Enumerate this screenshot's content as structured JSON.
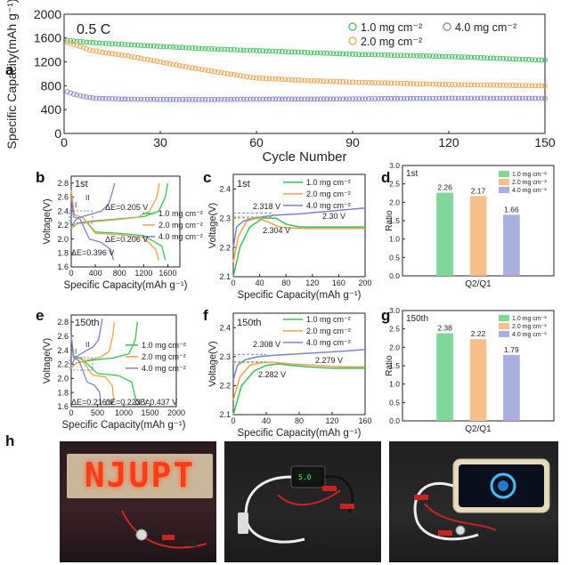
{
  "panels": {
    "a": "a",
    "b": "b",
    "c": "c",
    "d": "d",
    "e": "e",
    "f": "f",
    "g": "g",
    "h": "h"
  },
  "chart_data": [
    {
      "id": "a",
      "type": "scatter",
      "title": "0.5 C",
      "xlabel": "Cycle Number",
      "ylabel": "Specific Capacity(mAh g⁻¹)",
      "xlim": [
        0,
        150
      ],
      "ylim": [
        0,
        2000
      ],
      "xticks": [
        0,
        30,
        60,
        90,
        120,
        150
      ],
      "yticks": [
        0,
        400,
        800,
        1200,
        1600,
        2000
      ],
      "legend": [
        "1.0 mg cm⁻²",
        "2.0 mg cm⁻²",
        "4.0 mg cm⁻²"
      ],
      "series": [
        {
          "name": "1.0 mg cm⁻²",
          "color": "#3cbf5a",
          "x": [
            1,
            5,
            10,
            20,
            30,
            45,
            60,
            75,
            90,
            105,
            120,
            135,
            150
          ],
          "y": [
            1560,
            1540,
            1520,
            1490,
            1460,
            1420,
            1390,
            1360,
            1330,
            1310,
            1290,
            1260,
            1230
          ]
        },
        {
          "name": "2.0 mg cm⁻²",
          "color": "#f0a24a",
          "x": [
            1,
            5,
            8,
            12,
            20,
            30,
            40,
            50,
            60,
            75,
            90,
            105,
            120,
            135,
            150
          ],
          "y": [
            1530,
            1460,
            1400,
            1360,
            1300,
            1200,
            1100,
            1010,
            930,
            890,
            860,
            840,
            820,
            810,
            800
          ]
        },
        {
          "name": "4.0 mg cm⁻²",
          "color": "#8080c8",
          "x": [
            1,
            3,
            6,
            10,
            20,
            30,
            45,
            60,
            90,
            120,
            150
          ],
          "y": [
            700,
            660,
            620,
            590,
            575,
            570,
            570,
            575,
            580,
            590,
            590
          ]
        }
      ]
    },
    {
      "id": "b",
      "type": "line",
      "title": "1st",
      "xlabel": "Specific Capacity(mAh g⁻¹)",
      "ylabel": "Voltage(V)",
      "xlim": [
        0,
        1800
      ],
      "ylim": [
        1.6,
        2.9
      ],
      "xticks": [
        0,
        400,
        800,
        1200,
        1600
      ],
      "yticks": [
        1.6,
        1.8,
        2.0,
        2.2,
        2.4,
        2.6,
        2.8
      ],
      "legend": [
        "1.0 mg cm⁻²",
        "2.0 mg cm⁻²",
        "4.0 mg cm⁻²"
      ],
      "annotations": [
        "ΔE=0.205 V",
        "ΔE=0.206 V",
        "ΔE=0.396 V",
        "I",
        "II"
      ],
      "series": [
        {
          "name": "1.0 mg cm⁻²",
          "color": "#3cbf5a",
          "discharge": {
            "x": [
              0,
              50,
              200,
              400,
              800,
              1200,
              1500,
              1560
            ],
            "y": [
              2.7,
              2.35,
              2.3,
              2.1,
              2.08,
              2.05,
              1.9,
              1.7
            ]
          },
          "charge": {
            "x": [
              0,
              100,
              400,
              800,
              1200,
              1450,
              1560,
              1600
            ],
            "y": [
              2.15,
              2.23,
              2.26,
              2.29,
              2.32,
              2.4,
              2.6,
              2.8
            ]
          }
        },
        {
          "name": "2.0 mg cm⁻²",
          "color": "#f0a24a",
          "discharge": {
            "x": [
              0,
              50,
              200,
              400,
              800,
              1200,
              1400,
              1450
            ],
            "y": [
              2.7,
              2.35,
              2.3,
              2.08,
              2.06,
              2.02,
              1.85,
              1.7
            ]
          },
          "charge": {
            "x": [
              0,
              100,
              400,
              800,
              1100,
              1300,
              1420,
              1460
            ],
            "y": [
              2.15,
              2.22,
              2.25,
              2.28,
              2.31,
              2.4,
              2.6,
              2.8
            ]
          }
        },
        {
          "name": "4.0 mg cm⁻²",
          "color": "#8080c8",
          "discharge": {
            "x": [
              0,
              40,
              150,
              300,
              500,
              650,
              700
            ],
            "y": [
              2.6,
              2.32,
              2.28,
              2.0,
              1.95,
              1.85,
              1.7
            ]
          },
          "charge": {
            "x": [
              0,
              100,
              300,
              500,
              620,
              690,
              720
            ],
            "y": [
              2.18,
              2.3,
              2.35,
              2.4,
              2.5,
              2.7,
              2.8
            ]
          }
        }
      ]
    },
    {
      "id": "c",
      "type": "line",
      "title": "1st",
      "xlabel": "Specific Capacity(mAh g⁻¹)",
      "ylabel": "Voltage(V)",
      "xlim": [
        0,
        200
      ],
      "ylim": [
        2.1,
        2.45
      ],
      "xticks": [
        0,
        40,
        80,
        120,
        160,
        200
      ],
      "yticks": [
        2.1,
        2.2,
        2.3,
        2.4
      ],
      "legend": [
        "1.0 mg cm⁻²",
        "2.0 mg cm⁻²",
        "4.0 mg cm⁻²"
      ],
      "annotations": [
        "2.318 V",
        "2.30 V",
        "2.304 V"
      ],
      "series": [
        {
          "name": "1.0 mg cm⁻²",
          "color": "#3cbf5a",
          "x": [
            0,
            10,
            25,
            45,
            65,
            80,
            100,
            140,
            200
          ],
          "y": [
            2.1,
            2.2,
            2.27,
            2.3,
            2.3,
            2.28,
            2.27,
            2.27,
            2.27
          ]
        },
        {
          "name": "2.0 mg cm⁻²",
          "color": "#f0a24a",
          "x": [
            0,
            8,
            20,
            35,
            50,
            70,
            100,
            140,
            200
          ],
          "y": [
            2.15,
            2.24,
            2.29,
            2.3,
            2.29,
            2.27,
            2.265,
            2.265,
            2.265
          ]
        },
        {
          "name": "4.0 mg cm⁻²",
          "color": "#8080c8",
          "x": [
            0,
            5,
            15,
            30,
            60,
            100,
            150,
            200
          ],
          "y": [
            2.2,
            2.27,
            2.29,
            2.3,
            2.31,
            2.315,
            2.325,
            2.335
          ]
        }
      ]
    },
    {
      "id": "d",
      "type": "bar",
      "title": "1st",
      "xlabel": "Q2/Q1",
      "ylabel": "Ratio",
      "ylim": [
        0,
        3
      ],
      "yticks": [
        0.0,
        0.5,
        1.0,
        1.5,
        2.0,
        2.5,
        3.0
      ],
      "categories": [
        "1.0 mg cm⁻²",
        "2.0 mg cm⁻²",
        "4.0 mg cm⁻²"
      ],
      "values": [
        2.26,
        2.17,
        1.66
      ],
      "labels": [
        "2.26",
        "2.17",
        "1.66"
      ],
      "colors": [
        "#7fd89a",
        "#f7c08a",
        "#a9aee0"
      ]
    },
    {
      "id": "e",
      "type": "line",
      "title": "150th",
      "xlabel": "Specific Capacity(mAh g⁻¹)",
      "ylabel": "Voltage(V)",
      "xlim": [
        0,
        2000
      ],
      "ylim": [
        1.6,
        2.9
      ],
      "xticks": [
        0,
        500,
        1000,
        1500,
        2000
      ],
      "yticks": [
        1.6,
        1.8,
        2.0,
        2.2,
        2.4,
        2.6,
        2.8
      ],
      "legend": [
        "1.0 mg cm⁻²",
        "2.0 mg cm⁻²",
        "4.0 mg cm⁻²"
      ],
      "annotations": [
        "ΔE=0.437 V",
        "ΔE=0.223 V",
        "ΔE=0.216 V",
        "I",
        "II"
      ],
      "series": [
        {
          "name": "1.0 mg cm⁻²",
          "color": "#3cbf5a",
          "discharge": {
            "x": [
              0,
              50,
              200,
              500,
              900,
              1150,
              1230
            ],
            "y": [
              2.6,
              2.32,
              2.28,
              2.07,
              2.04,
              1.95,
              1.7
            ]
          },
          "charge": {
            "x": [
              0,
              100,
              400,
              800,
              1100,
              1220,
              1260
            ],
            "y": [
              2.15,
              2.22,
              2.26,
              2.29,
              2.35,
              2.55,
              2.8
            ]
          }
        },
        {
          "name": "2.0 mg cm⁻²",
          "color": "#f0a24a",
          "discharge": {
            "x": [
              0,
              50,
              200,
              400,
              650,
              780,
              810
            ],
            "y": [
              2.6,
              2.3,
              2.27,
              2.05,
              2.02,
              1.9,
              1.7
            ]
          },
          "charge": {
            "x": [
              0,
              100,
              300,
              550,
              720,
              790,
              820
            ],
            "y": [
              2.15,
              2.22,
              2.26,
              2.3,
              2.38,
              2.6,
              2.8
            ]
          }
        },
        {
          "name": "4.0 mg cm⁻²",
          "color": "#8080c8",
          "discharge": {
            "x": [
              0,
              40,
              150,
              300,
              450,
              540,
              570
            ],
            "y": [
              2.6,
              2.3,
              2.25,
              1.95,
              1.9,
              1.8,
              1.62
            ]
          },
          "charge": {
            "x": [
              0,
              80,
              250,
              420,
              520,
              560,
              590
            ],
            "y": [
              2.18,
              2.3,
              2.38,
              2.45,
              2.55,
              2.7,
              2.85
            ]
          }
        }
      ]
    },
    {
      "id": "f",
      "type": "line",
      "title": "150th",
      "xlabel": "Specific Capacity(mAh g⁻¹)",
      "ylabel": "Voltage(V)",
      "xlim": [
        0,
        160
      ],
      "ylim": [
        2.1,
        2.45
      ],
      "xticks": [
        0,
        40,
        80,
        120,
        160
      ],
      "yticks": [
        2.1,
        2.2,
        2.3,
        2.4
      ],
      "legend": [
        "1.0 mg cm⁻²",
        "2.0 mg cm⁻²",
        "4.0 mg cm⁻²"
      ],
      "annotations": [
        "2.308 V",
        "2.279 V",
        "2.282 V"
      ],
      "series": [
        {
          "name": "1.0 mg cm⁻²",
          "color": "#3cbf5a",
          "x": [
            0,
            10,
            25,
            40,
            55,
            70,
            90,
            120,
            160
          ],
          "y": [
            2.1,
            2.2,
            2.25,
            2.27,
            2.275,
            2.27,
            2.265,
            2.26,
            2.26
          ]
        },
        {
          "name": "2.0 mg cm⁻²",
          "color": "#f0a24a",
          "x": [
            0,
            8,
            20,
            35,
            50,
            70,
            100,
            130,
            160
          ],
          "y": [
            2.15,
            2.23,
            2.27,
            2.28,
            2.28,
            2.275,
            2.27,
            2.265,
            2.265
          ]
        },
        {
          "name": "4.0 mg cm⁻²",
          "color": "#8080c8",
          "x": [
            0,
            5,
            15,
            30,
            50,
            80,
            110,
            140,
            160
          ],
          "y": [
            2.22,
            2.27,
            2.29,
            2.3,
            2.305,
            2.31,
            2.315,
            2.32,
            2.325
          ]
        }
      ]
    },
    {
      "id": "g",
      "type": "bar",
      "title": "150th",
      "xlabel": "Q2/Q1",
      "ylabel": "Ratio",
      "ylim": [
        0,
        3
      ],
      "yticks": [
        0.0,
        0.5,
        1.0,
        1.5,
        2.0,
        2.5,
        3.0
      ],
      "categories": [
        "1.0 mg cm⁻²",
        "2.0 mg cm⁻²",
        "4.0 mg cm⁻²"
      ],
      "values": [
        2.38,
        2.22,
        1.79
      ],
      "labels": [
        "2.38",
        "2.22",
        "1.79"
      ],
      "colors": [
        "#7fd89a",
        "#f7c08a",
        "#a9aee0"
      ]
    }
  ],
  "photos": {
    "sign_text": "NJUPT",
    "photo1": "LED sign lit by battery",
    "photo2": "battery driving a display meter",
    "photo3": "battery charging a smartphone"
  }
}
